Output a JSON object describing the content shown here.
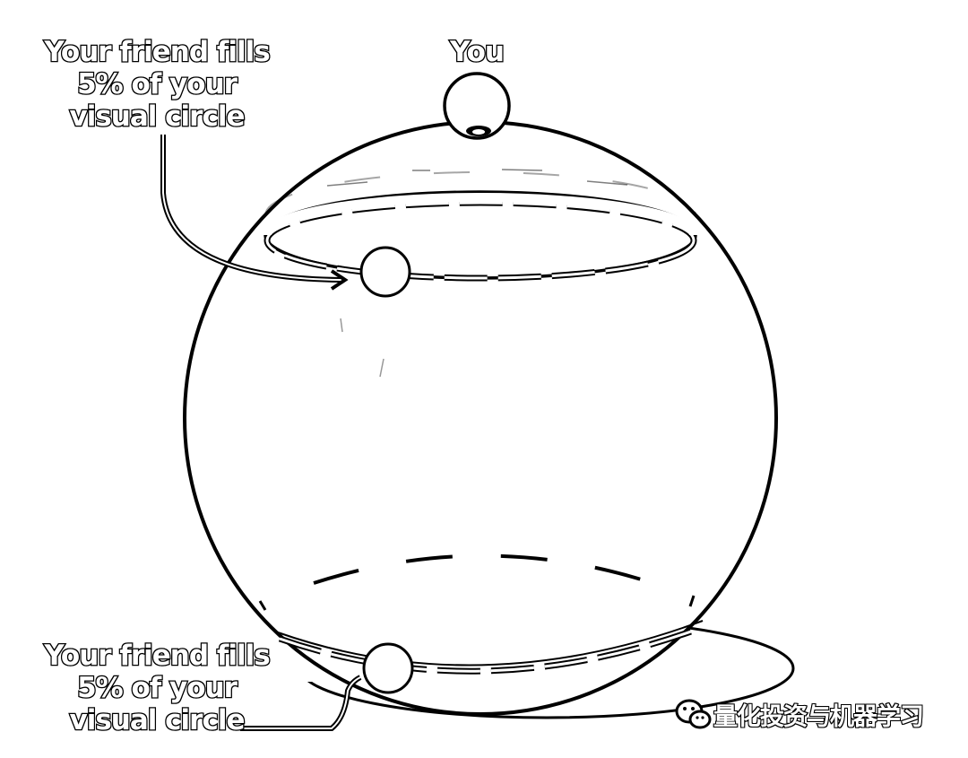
{
  "labels": {
    "you": "You",
    "top_callout": [
      "Your friend fills",
      "5% of your",
      "visual circle"
    ],
    "bottom_callout": [
      "Your friend fills",
      "5% of your",
      "visual circle"
    ]
  },
  "watermark": {
    "text": "量化投资与机器学习",
    "icon": "wechat-icon"
  },
  "colors": {
    "stroke": "#000000",
    "fill": "#ffffff"
  }
}
